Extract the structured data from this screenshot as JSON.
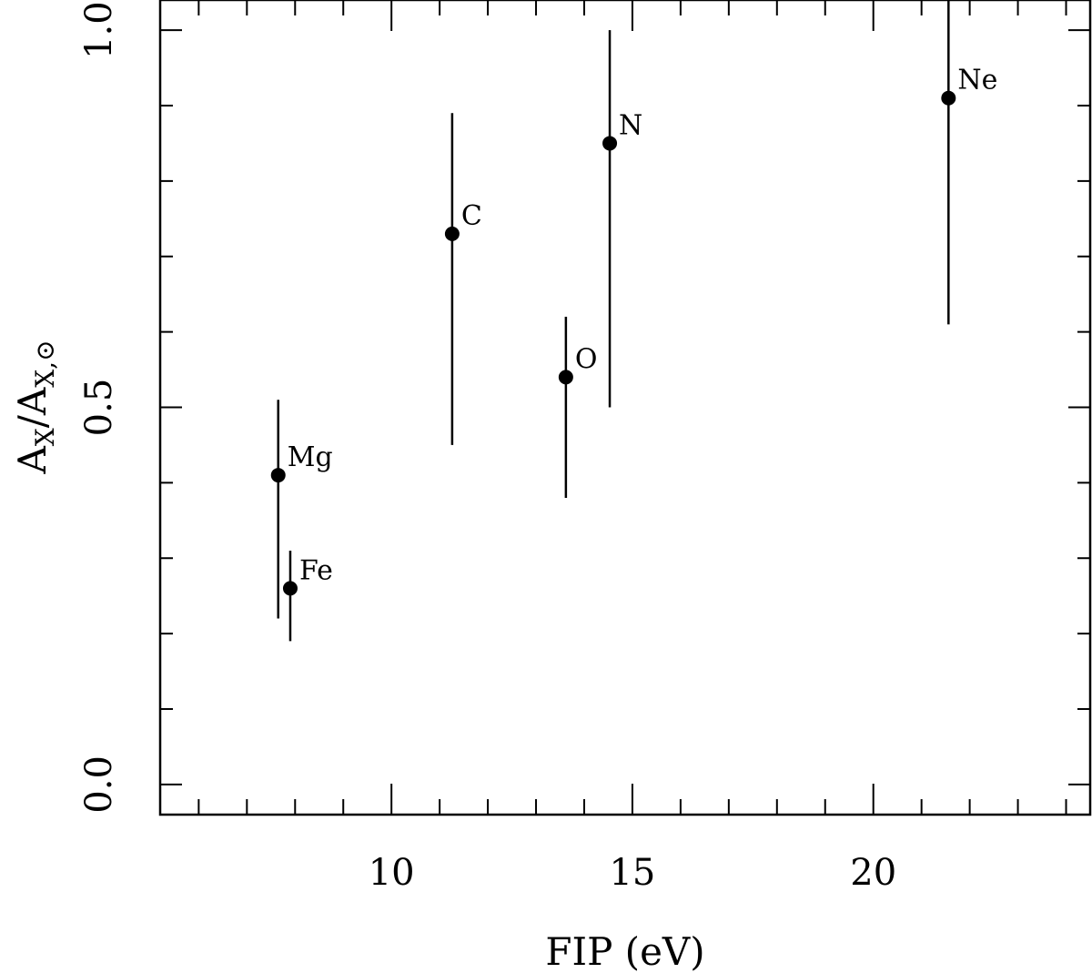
{
  "chart_data": {
    "type": "scatter",
    "xlabel": "FIP (eV)",
    "ylabel": {
      "main": "A",
      "main_sub": "X",
      "separator": "/",
      "ref": "A",
      "ref_sub": "X,⊙"
    },
    "xlim": [
      5.2,
      24.5
    ],
    "ylim": [
      -0.04,
      1.04
    ],
    "x_major_ticks": [
      10,
      15,
      20
    ],
    "x_minor_step": 1,
    "y_major_ticks": [
      0.0,
      0.5,
      1.0
    ],
    "y_tick_labels": [
      "0.0",
      "0.5",
      "1.0"
    ],
    "y_minor_step": 0.1,
    "grid": false,
    "points": [
      {
        "label": "Mg",
        "x": 7.65,
        "y": 0.41,
        "ylow": 0.22,
        "yhigh": 0.51
      },
      {
        "label": "Fe",
        "x": 7.9,
        "y": 0.26,
        "ylow": 0.19,
        "yhigh": 0.31
      },
      {
        "label": "C",
        "x": 11.26,
        "y": 0.73,
        "ylow": 0.45,
        "yhigh": 0.89
      },
      {
        "label": "O",
        "x": 13.62,
        "y": 0.54,
        "ylow": 0.38,
        "yhigh": 0.62
      },
      {
        "label": "N",
        "x": 14.53,
        "y": 0.85,
        "ylow": 0.5,
        "yhigh": 1.0
      },
      {
        "label": "Ne",
        "x": 21.56,
        "y": 0.91,
        "ylow": 0.61,
        "yhigh": 1.04
      }
    ]
  }
}
